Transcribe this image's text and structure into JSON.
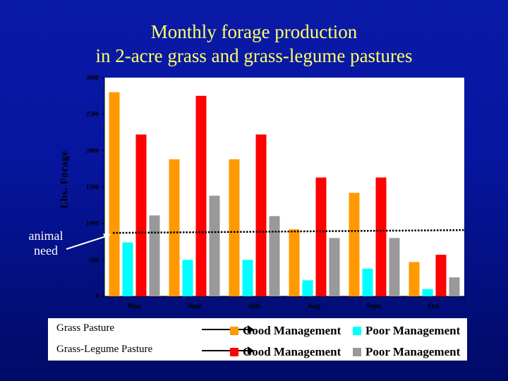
{
  "title": {
    "line1": "Monthly forage production",
    "line2": "in 2-acre grass and grass-legume pastures"
  },
  "annotation": {
    "animal_need_line1": "animal",
    "animal_need_line2": "need"
  },
  "legend": {
    "rows": [
      {
        "label": "Grass Pasture",
        "items": [
          {
            "label": "Good Management",
            "color": "#ff9900"
          },
          {
            "label": "Poor Management",
            "color": "#00ffff"
          }
        ]
      },
      {
        "label": "Grass-Legume Pasture",
        "items": [
          {
            "label": "Good Management",
            "color": "#ff0000"
          },
          {
            "label": "Poor Management",
            "color": "#999999"
          }
        ]
      }
    ]
  },
  "chart_data": {
    "type": "bar",
    "title": "",
    "xlabel": "",
    "ylabel": "Lbs. Forage",
    "categories": [
      "May",
      "June",
      "July",
      "Aug.",
      "Sept.",
      "Oct."
    ],
    "ylim": [
      0,
      3000
    ],
    "yticks": [
      0,
      500,
      1000,
      1500,
      2000,
      2500,
      3000
    ],
    "grid": false,
    "series": [
      {
        "values": [
          2800,
          1880,
          1880,
          920,
          1420,
          470
        ],
        "color": "#ff9900"
      },
      {
        "values": [
          740,
          500,
          500,
          220,
          380,
          100
        ],
        "color": "#00ffff"
      },
      {
        "values": [
          2220,
          2750,
          2220,
          1630,
          1630,
          570
        ],
        "color": "#ff0000"
      },
      {
        "values": [
          1110,
          1380,
          1100,
          800,
          800,
          260
        ],
        "color": "#999999"
      }
    ],
    "reference_line": {
      "label": "animal need",
      "value": 870,
      "style": "dotted"
    }
  }
}
